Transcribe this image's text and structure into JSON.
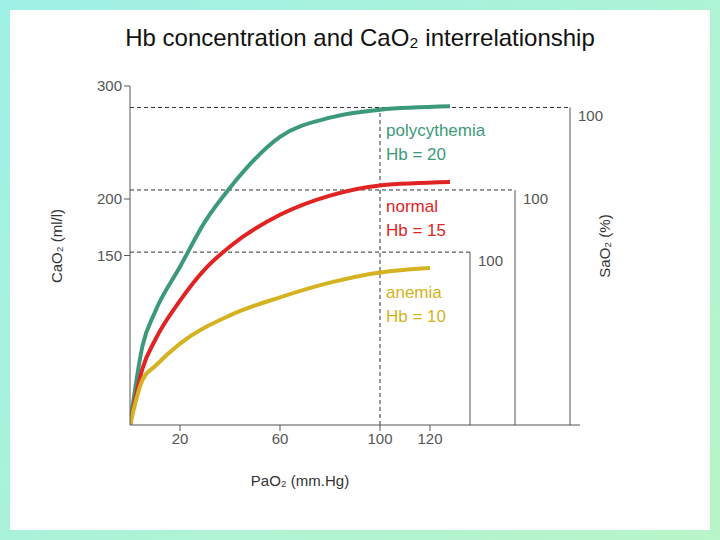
{
  "chart_data": {
    "type": "line",
    "title": "Hb concentration and CaO₂ interrelationship",
    "x_label": "PaO₂ (mm.Hg)",
    "y_label": "CaO₂ (ml/l)",
    "y2_label": "SaO₂ (%)",
    "xlim": [
      0,
      180
    ],
    "xticks": [
      20,
      60,
      100,
      120
    ],
    "ylim": [
      0,
      300
    ],
    "yticks": [
      150,
      200,
      300
    ],
    "reference_x": 100,
    "series": [
      {
        "name": "polycythemia",
        "label": "Hb = 20",
        "color": "#3d9a78",
        "x": [
          0,
          5,
          10,
          20,
          30,
          40,
          60,
          80,
          100,
          128
        ],
        "values": [
          0,
          70,
          100,
          140,
          180,
          210,
          255,
          272,
          279,
          282
        ]
      },
      {
        "name": "normal",
        "label": "Hb = 15",
        "color": "#e02424",
        "x": [
          0,
          5,
          10,
          20,
          30,
          40,
          60,
          80,
          100,
          128
        ],
        "values": [
          0,
          50,
          75,
          110,
          138,
          158,
          186,
          203,
          212,
          215
        ]
      },
      {
        "name": "anemia",
        "label": "Hb = 10",
        "color": "#d4b222",
        "x": [
          0,
          5,
          10,
          20,
          40,
          60,
          80,
          100,
          120
        ],
        "values": [
          0,
          40,
          52,
          72,
          97,
          113,
          126,
          135,
          139
        ]
      }
    ],
    "sao2_scales": [
      {
        "x": 176,
        "y": 281,
        "label": "100"
      },
      {
        "x": 154,
        "y": 208,
        "label": "100"
      },
      {
        "x": 136,
        "y": 153,
        "label": "100"
      }
    ]
  }
}
